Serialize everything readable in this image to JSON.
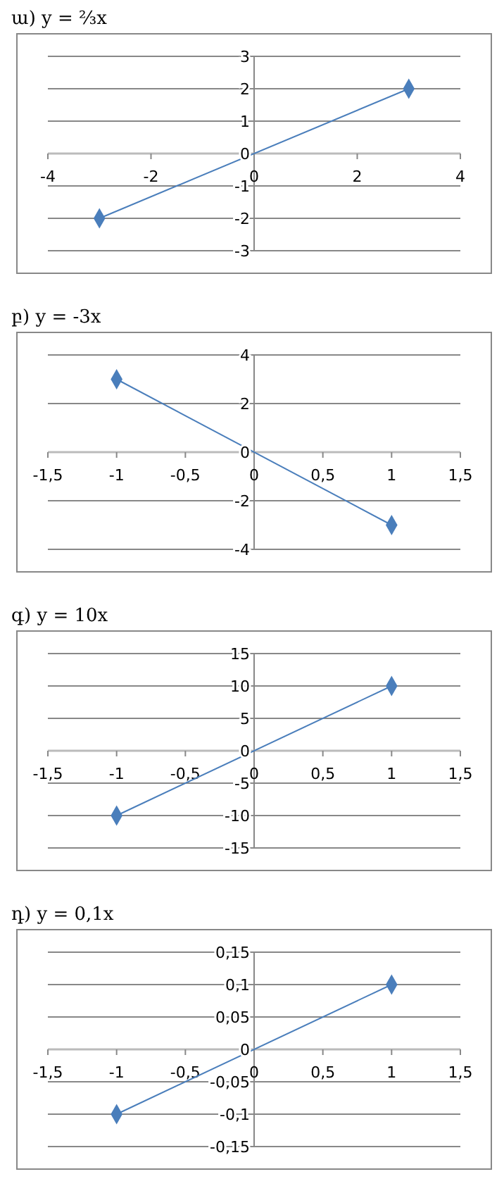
{
  "chart_data": [
    {
      "type": "line",
      "title": "ա) y = ⅔x",
      "x": [
        -3,
        3
      ],
      "series": [
        {
          "color": "#4a7ebb",
          "values": [
            -2,
            2
          ]
        }
      ],
      "xlim": [
        -4,
        4
      ],
      "xticks": [
        -4,
        -2,
        0,
        2,
        4
      ],
      "ylim": [
        -3,
        3
      ],
      "yticks": [
        -3,
        -2,
        -1,
        0,
        1,
        2,
        3
      ],
      "grid": "y",
      "marker": "diamond"
    },
    {
      "type": "line",
      "title": "բ) y = -3x",
      "x": [
        -1,
        1
      ],
      "series": [
        {
          "color": "#4a7ebb",
          "values": [
            3,
            -3
          ]
        }
      ],
      "xlim": [
        -1.5,
        1.5
      ],
      "xticks": [
        {
          "value": -1.5,
          "label": "-1,5"
        },
        -1,
        {
          "value": -0.5,
          "label": "-0,5"
        },
        0,
        {
          "value": 0.5,
          "label": "0,5"
        },
        1,
        {
          "value": 1.5,
          "label": "1,5"
        }
      ],
      "ylim": [
        -4,
        4
      ],
      "yticks": [
        -4,
        -2,
        0,
        2,
        4
      ],
      "grid": "y",
      "marker": "diamond"
    },
    {
      "type": "line",
      "title": "գ) y = 10x",
      "x": [
        -1,
        1
      ],
      "series": [
        {
          "color": "#4a7ebb",
          "values": [
            -10,
            10
          ]
        }
      ],
      "xlim": [
        -1.5,
        1.5
      ],
      "xticks": [
        {
          "value": -1.5,
          "label": "-1,5"
        },
        -1,
        {
          "value": -0.5,
          "label": "-0,5"
        },
        0,
        {
          "value": 0.5,
          "label": "0,5"
        },
        1,
        {
          "value": 1.5,
          "label": "1,5"
        }
      ],
      "ylim": [
        -15,
        15
      ],
      "yticks": [
        -15,
        -10,
        -5,
        0,
        5,
        10,
        15
      ],
      "grid": "y",
      "marker": "diamond"
    },
    {
      "type": "line",
      "title": "դ) y = 0,1x",
      "x": [
        -1,
        1
      ],
      "series": [
        {
          "color": "#4a7ebb",
          "values": [
            -0.1,
            0.1
          ]
        }
      ],
      "xlim": [
        -1.5,
        1.5
      ],
      "xticks": [
        {
          "value": -1.5,
          "label": "-1,5"
        },
        -1,
        {
          "value": -0.5,
          "label": "-0,5"
        },
        0,
        {
          "value": 0.5,
          "label": "0,5"
        },
        1,
        {
          "value": 1.5,
          "label": "1,5"
        }
      ],
      "ylim": [
        -0.15,
        0.15
      ],
      "yticks": [
        {
          "value": -0.15,
          "label": "-0,15"
        },
        {
          "value": -0.1,
          "label": "-0,1"
        },
        {
          "value": -0.05,
          "label": "-0,05"
        },
        0,
        {
          "value": 0.05,
          "label": "0,05"
        },
        {
          "value": 0.1,
          "label": "0,1"
        },
        {
          "value": 0.15,
          "label": "0,15"
        }
      ],
      "grid": "y",
      "marker": "diamond"
    }
  ]
}
